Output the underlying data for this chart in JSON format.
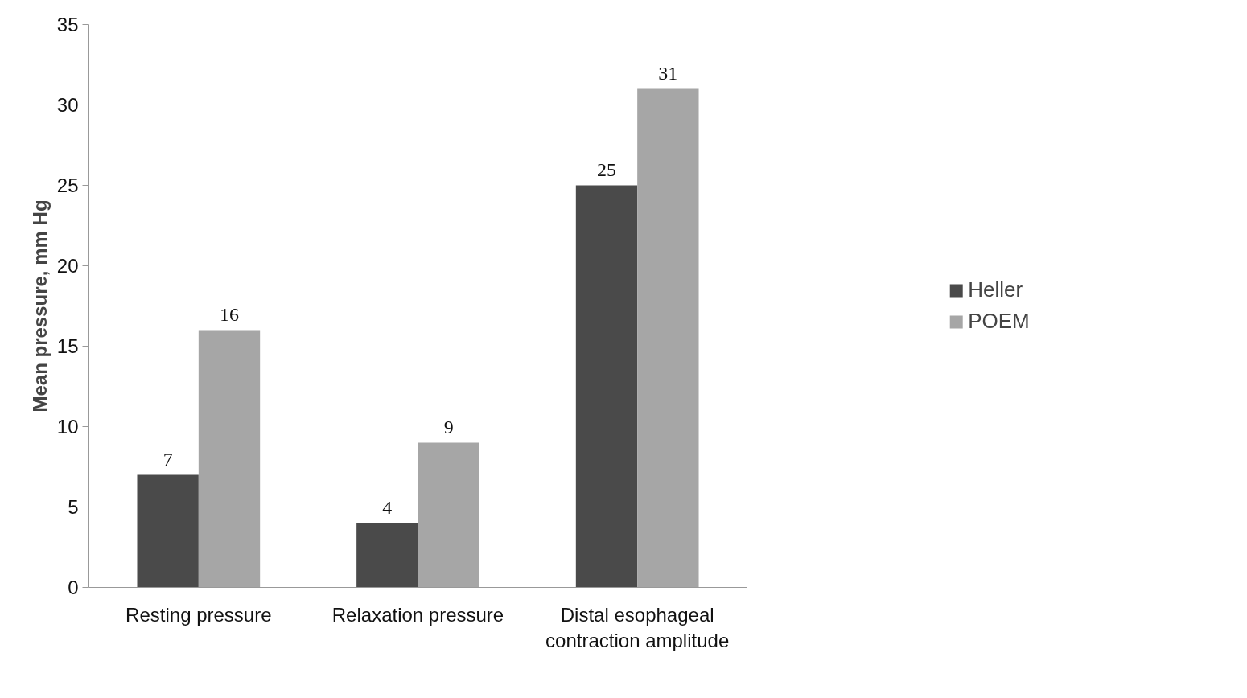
{
  "chart_data": {
    "type": "bar",
    "ylabel": "Mean pressure, mm Hg",
    "categories": [
      "Resting pressure",
      "Relaxation pressure",
      "Distal esophageal contraction amplitude"
    ],
    "series": [
      {
        "name": "Heller",
        "color": "#4a4a4a",
        "values": [
          7,
          4,
          25
        ]
      },
      {
        "name": "POEM",
        "color": "#a6a6a6",
        "values": [
          16,
          9,
          31
        ]
      }
    ],
    "ylim": [
      0,
      35
    ],
    "yticks": [
      0,
      5,
      10,
      15,
      20,
      25,
      30,
      35
    ],
    "grid": false,
    "legend": "right",
    "data_labels": true
  }
}
